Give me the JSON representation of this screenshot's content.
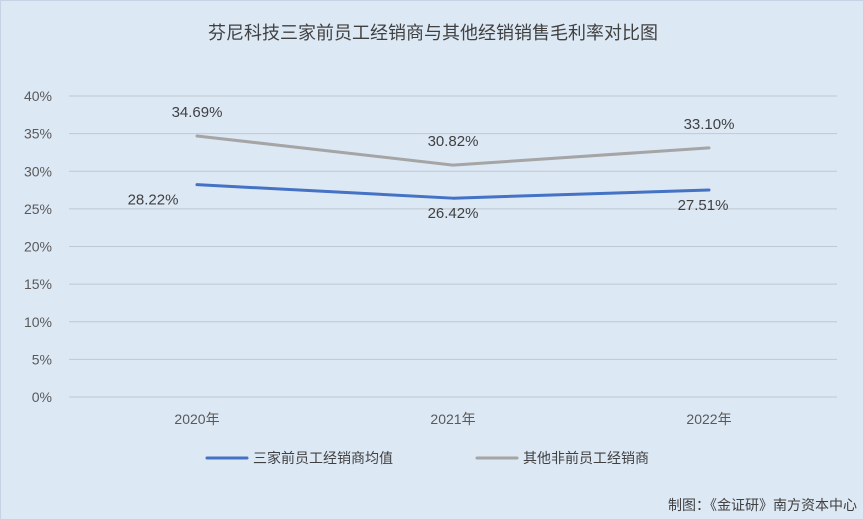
{
  "chart_data": {
    "type": "line",
    "title": "芬尼科技三家前员工经销商与其他经销销售毛利率对比图",
    "categories": [
      "2020年",
      "2021年",
      "2022年"
    ],
    "y_ticks": [
      "0%",
      "5%",
      "10%",
      "15%",
      "20%",
      "25%",
      "30%",
      "35%",
      "40%"
    ],
    "ylim": [
      0,
      40
    ],
    "y_unit": "%",
    "grid": true,
    "legend_position": "bottom",
    "series": [
      {
        "name": "三家前员工经销商均值",
        "values": [
          28.22,
          26.42,
          27.51
        ],
        "labels": [
          "28.22%",
          "26.42%",
          "27.51%"
        ],
        "color": "#4472c4",
        "label_placement": "below"
      },
      {
        "name": "其他非前员工经销商",
        "values": [
          34.69,
          30.82,
          33.1
        ],
        "labels": [
          "34.69%",
          "30.82%",
          "33.10%"
        ],
        "color": "#a5a5a5",
        "label_placement": "above"
      }
    ]
  },
  "source": "制图：《金证研》南方资本中心",
  "colors": {
    "background": "#dde8f5",
    "gridline": "#c0c8d2",
    "text": "#404040"
  }
}
